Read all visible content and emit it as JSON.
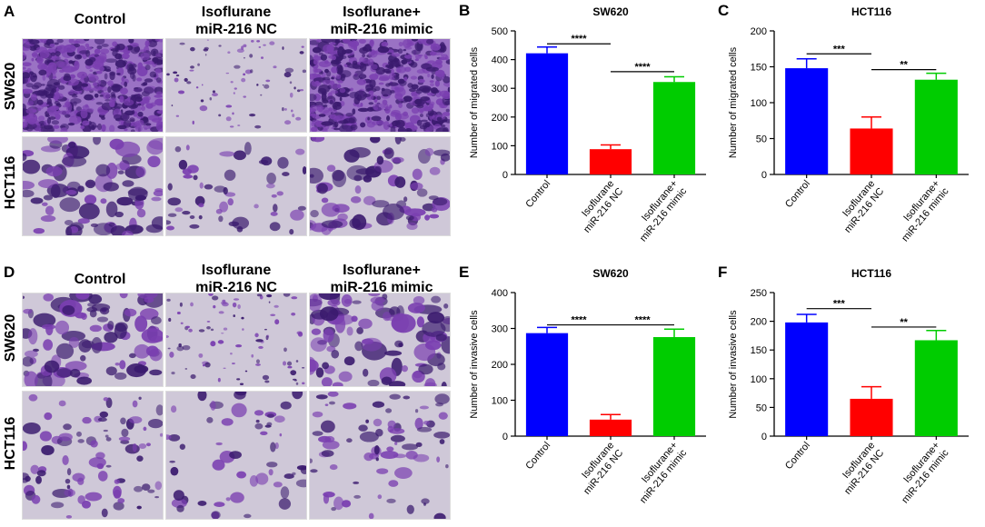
{
  "colors": {
    "control": "#0000ff",
    "isoflurane_nc": "#ff0000",
    "isoflurane_mimic": "#00cc00",
    "stain_dark": "#3a1a6e",
    "stain_mid": "#7a3fb0",
    "stain_bg": "#cfc8d8"
  },
  "image_panels": [
    {
      "letter": "A",
      "columns": [
        "Control",
        "Isoflurane\nmiR-216 NC",
        "Isoflurane+\nmiR-216 mimic"
      ],
      "rows": [
        "SW620",
        "HCT116"
      ]
    },
    {
      "letter": "D",
      "columns": [
        "Control",
        "Isoflurane\nmiR-216 NC",
        "Isoflurane+\nmiR-216 mimic"
      ],
      "rows": [
        "SW620",
        "HCT116"
      ]
    }
  ],
  "chart_data": [
    {
      "letter": "B",
      "type": "bar",
      "title": "SW620",
      "ylabel": "Number of migrated cells",
      "categories": [
        "Control",
        "Isoflurane\nmiR-216 NC",
        "Isoflurane+\nmiR-216 mimic"
      ],
      "values": [
        422,
        88,
        322
      ],
      "errors": [
        22,
        15,
        18
      ],
      "ylim": [
        0,
        500
      ],
      "yticks": [
        0,
        100,
        200,
        300,
        400,
        500
      ],
      "significance": [
        {
          "from": 0,
          "to": 1,
          "label": "****",
          "y": 455
        },
        {
          "from": 1,
          "to": 2,
          "label": "****",
          "y": 358
        }
      ]
    },
    {
      "letter": "C",
      "type": "bar",
      "title": "HCT116",
      "ylabel": "Number of migrated cells",
      "categories": [
        "Control",
        "Isoflurane\nmiR-216 NC",
        "Isoflurane+\nmiR-216 mimic"
      ],
      "values": [
        148,
        64,
        132
      ],
      "errors": [
        13,
        16,
        9
      ],
      "ylim": [
        0,
        200
      ],
      "yticks": [
        0,
        50,
        100,
        150,
        200
      ],
      "significance": [
        {
          "from": 0,
          "to": 1,
          "label": "***",
          "y": 168
        },
        {
          "from": 1,
          "to": 2,
          "label": "**",
          "y": 146
        }
      ]
    },
    {
      "letter": "E",
      "type": "bar",
      "title": "SW620",
      "ylabel": "Number of invasive cells",
      "categories": [
        "Control",
        "Isoflurane\nmiR-216 NC",
        "Isoflurane+\nmiR-216 mimic"
      ],
      "values": [
        287,
        46,
        276
      ],
      "errors": [
        16,
        14,
        22
      ],
      "ylim": [
        0,
        400
      ],
      "yticks": [
        0,
        100,
        200,
        300,
        400
      ],
      "significance": [
        {
          "from": 0,
          "to": 1,
          "label": "****",
          "y": 310
        },
        {
          "from": 1,
          "to": 2,
          "label": "****",
          "y": 310
        }
      ]
    },
    {
      "letter": "F",
      "type": "bar",
      "title": "HCT116",
      "ylabel": "Number of invasive cells",
      "categories": [
        "Control",
        "Isoflurane\nmiR-216 NC",
        "Isoflurane+\nmiR-216 mimic"
      ],
      "values": [
        198,
        65,
        167
      ],
      "errors": [
        14,
        21,
        17
      ],
      "ylim": [
        0,
        250
      ],
      "yticks": [
        0,
        50,
        100,
        150,
        200,
        250
      ],
      "significance": [
        {
          "from": 0,
          "to": 1,
          "label": "***",
          "y": 222
        },
        {
          "from": 1,
          "to": 2,
          "label": "**",
          "y": 190
        }
      ]
    }
  ]
}
